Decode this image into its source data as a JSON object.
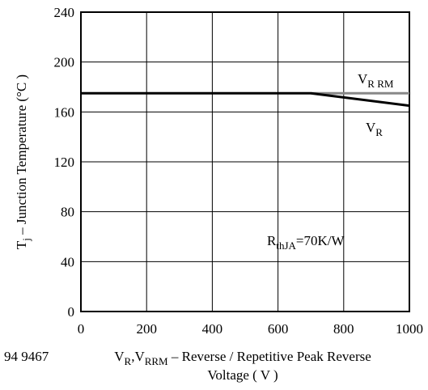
{
  "chart_data": {
    "type": "line",
    "x_label": [
      [
        {
          "text": "V"
        },
        {
          "text": "R",
          "sub": true
        },
        {
          "text": ",V"
        },
        {
          "text": "RRM",
          "sub": true
        },
        {
          "text": " – Reverse / Repetitive Peak Reverse"
        }
      ],
      [
        {
          "text": "Voltage ( V )"
        }
      ]
    ],
    "y_label": [
      {
        "text": "T"
      },
      {
        "text": "j",
        "sub": true
      },
      {
        "text": " – Junction Temperature (°C )"
      }
    ],
    "annotations": [
      [
        {
          "text": "R"
        },
        {
          "text": "thJA",
          "sub": true
        },
        {
          "text": "=70K/W"
        }
      ]
    ],
    "figure_number": "94 9467",
    "series": [
      {
        "label": [
          {
            "text": "V"
          },
          {
            "text": "R RM",
            "sub": true
          }
        ],
        "color": "#888888",
        "x": [
          700,
          1000
        ],
        "values": [
          175,
          175
        ]
      },
      {
        "label": [
          {
            "text": "V"
          },
          {
            "text": "R",
            "sub": true
          }
        ],
        "color": "#000000",
        "x": [
          0,
          700,
          1000
        ],
        "values": [
          175,
          175,
          165
        ]
      }
    ],
    "xlim": [
      0,
      1000
    ],
    "xticks": [
      0,
      200,
      400,
      600,
      800,
      1000
    ],
    "ylim": [
      0,
      240
    ],
    "yticks": [
      0,
      40,
      80,
      120,
      160,
      200,
      240
    ],
    "grid": true
  }
}
